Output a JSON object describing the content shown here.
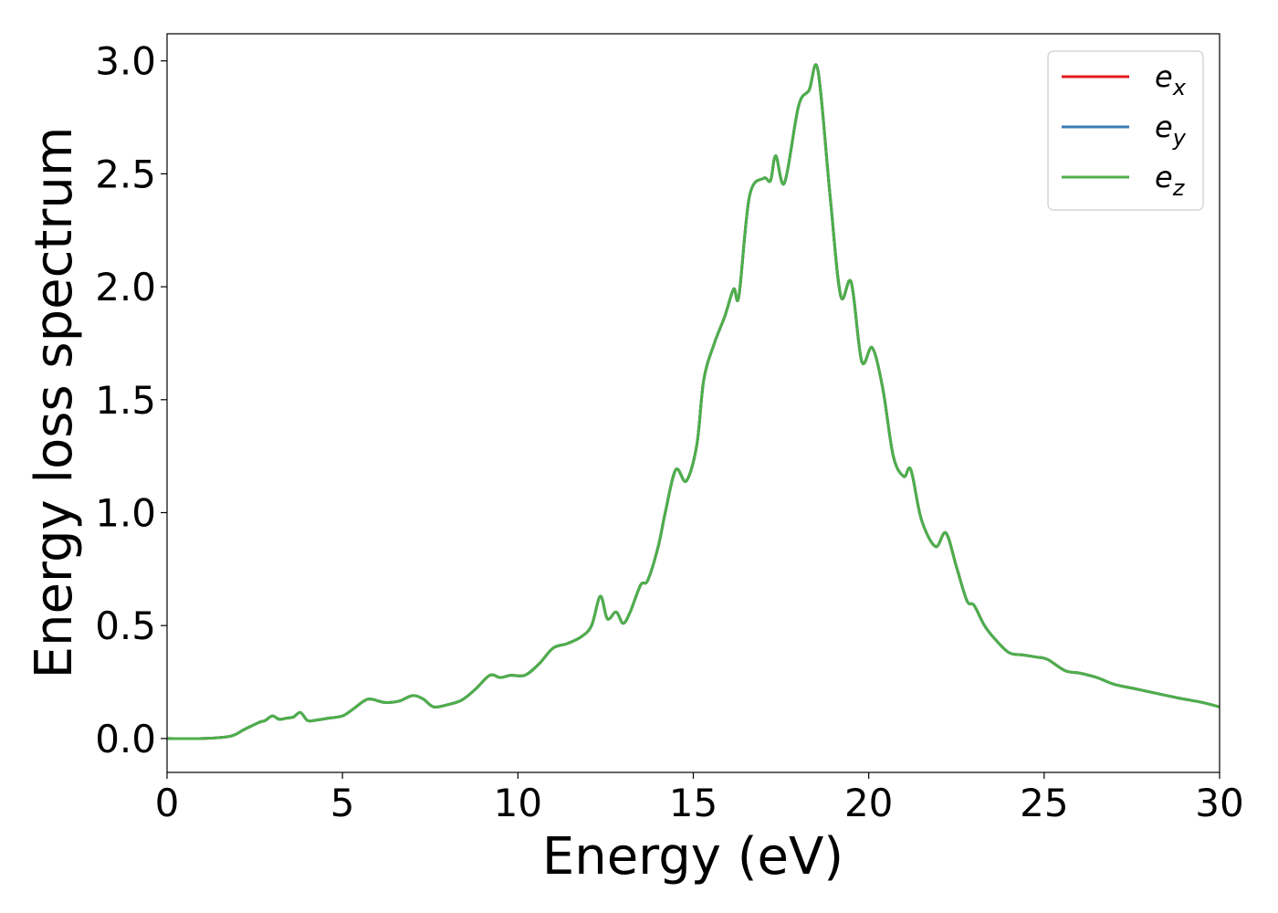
{
  "chart_data": {
    "type": "line",
    "xlabel": "Energy (eV)",
    "ylabel": "Energy loss spectrum",
    "xlim": [
      0,
      30
    ],
    "ylim": [
      -0.15,
      3.12
    ],
    "xticks": [
      0,
      5,
      10,
      15,
      20,
      25,
      30
    ],
    "xtick_labels": [
      "0",
      "5",
      "10",
      "15",
      "20",
      "25",
      "30"
    ],
    "yticks": [
      0.0,
      0.5,
      1.0,
      1.5,
      2.0,
      2.5,
      3.0
    ],
    "ytick_labels": [
      "0.0",
      "0.5",
      "1.0",
      "1.5",
      "2.0",
      "2.5",
      "3.0"
    ],
    "grid": false,
    "legend_position": "top-right",
    "x": [
      0.0,
      1.0,
      1.8,
      2.2,
      2.6,
      2.8,
      3.0,
      3.2,
      3.4,
      3.6,
      3.8,
      4.0,
      4.2,
      4.6,
      5.0,
      5.3,
      5.6,
      5.8,
      6.2,
      6.6,
      7.0,
      7.3,
      7.6,
      8.0,
      8.4,
      8.8,
      9.2,
      9.5,
      9.8,
      10.2,
      10.6,
      11.0,
      11.4,
      11.8,
      12.1,
      12.35,
      12.55,
      12.8,
      13.0,
      13.2,
      13.5,
      13.7,
      14.0,
      14.2,
      14.5,
      14.8,
      15.1,
      15.3,
      15.6,
      15.9,
      16.15,
      16.3,
      16.6,
      17.0,
      17.2,
      17.35,
      17.6,
      18.0,
      18.3,
      18.55,
      18.9,
      19.2,
      19.5,
      19.8,
      20.1,
      20.4,
      20.7,
      21.0,
      21.2,
      21.5,
      21.9,
      22.2,
      22.5,
      22.8,
      23.0,
      23.3,
      23.6,
      24.0,
      24.4,
      24.8,
      25.1,
      25.6,
      26.0,
      26.5,
      27.0,
      27.6,
      28.2,
      28.8,
      29.5,
      30.0
    ],
    "series": [
      {
        "name": "e_x",
        "color": "#e41a1c",
        "values": [
          0.0,
          0.0,
          0.01,
          0.04,
          0.07,
          0.08,
          0.1,
          0.085,
          0.09,
          0.095,
          0.115,
          0.08,
          0.08,
          0.09,
          0.1,
          0.13,
          0.165,
          0.175,
          0.16,
          0.165,
          0.19,
          0.175,
          0.14,
          0.15,
          0.17,
          0.22,
          0.28,
          0.27,
          0.28,
          0.28,
          0.33,
          0.4,
          0.42,
          0.45,
          0.5,
          0.63,
          0.53,
          0.56,
          0.51,
          0.56,
          0.68,
          0.7,
          0.85,
          1.0,
          1.19,
          1.14,
          1.3,
          1.59,
          1.75,
          1.87,
          1.99,
          1.96,
          2.4,
          2.48,
          2.47,
          2.58,
          2.46,
          2.8,
          2.87,
          2.96,
          2.4,
          1.96,
          2.02,
          1.67,
          1.73,
          1.55,
          1.25,
          1.16,
          1.19,
          0.97,
          0.85,
          0.91,
          0.76,
          0.61,
          0.59,
          0.5,
          0.44,
          0.38,
          0.37,
          0.36,
          0.35,
          0.3,
          0.29,
          0.27,
          0.24,
          0.22,
          0.2,
          0.18,
          0.16,
          0.14
        ]
      },
      {
        "name": "e_y",
        "color": "#377eb8",
        "values": [
          0.0,
          0.0,
          0.01,
          0.04,
          0.07,
          0.08,
          0.1,
          0.085,
          0.09,
          0.095,
          0.115,
          0.08,
          0.08,
          0.09,
          0.1,
          0.13,
          0.165,
          0.175,
          0.16,
          0.165,
          0.19,
          0.175,
          0.14,
          0.15,
          0.17,
          0.22,
          0.28,
          0.27,
          0.28,
          0.28,
          0.33,
          0.4,
          0.42,
          0.45,
          0.5,
          0.63,
          0.53,
          0.56,
          0.51,
          0.56,
          0.68,
          0.7,
          0.85,
          1.0,
          1.19,
          1.14,
          1.3,
          1.59,
          1.75,
          1.87,
          1.99,
          1.96,
          2.4,
          2.48,
          2.47,
          2.58,
          2.46,
          2.8,
          2.87,
          2.96,
          2.4,
          1.96,
          2.02,
          1.67,
          1.73,
          1.55,
          1.25,
          1.16,
          1.19,
          0.97,
          0.85,
          0.91,
          0.76,
          0.61,
          0.59,
          0.5,
          0.44,
          0.38,
          0.37,
          0.36,
          0.35,
          0.3,
          0.29,
          0.27,
          0.24,
          0.22,
          0.2,
          0.18,
          0.16,
          0.14
        ]
      },
      {
        "name": "e_z",
        "color": "#4daf4a",
        "values": [
          0.0,
          0.0,
          0.01,
          0.04,
          0.07,
          0.08,
          0.1,
          0.085,
          0.09,
          0.095,
          0.115,
          0.08,
          0.08,
          0.09,
          0.1,
          0.13,
          0.165,
          0.175,
          0.16,
          0.165,
          0.19,
          0.175,
          0.14,
          0.15,
          0.17,
          0.22,
          0.28,
          0.27,
          0.28,
          0.28,
          0.33,
          0.4,
          0.42,
          0.45,
          0.5,
          0.63,
          0.53,
          0.56,
          0.51,
          0.56,
          0.68,
          0.7,
          0.85,
          1.0,
          1.19,
          1.14,
          1.3,
          1.59,
          1.75,
          1.87,
          1.99,
          1.96,
          2.4,
          2.48,
          2.47,
          2.58,
          2.46,
          2.8,
          2.87,
          2.96,
          2.4,
          1.96,
          2.02,
          1.67,
          1.73,
          1.55,
          1.25,
          1.16,
          1.19,
          0.97,
          0.85,
          0.91,
          0.76,
          0.61,
          0.59,
          0.5,
          0.44,
          0.38,
          0.37,
          0.36,
          0.35,
          0.3,
          0.29,
          0.27,
          0.24,
          0.22,
          0.2,
          0.18,
          0.16,
          0.14
        ]
      }
    ],
    "legend": [
      {
        "base": "e",
        "sub": "x"
      },
      {
        "base": "e",
        "sub": "y"
      },
      {
        "base": "e",
        "sub": "z"
      }
    ]
  }
}
